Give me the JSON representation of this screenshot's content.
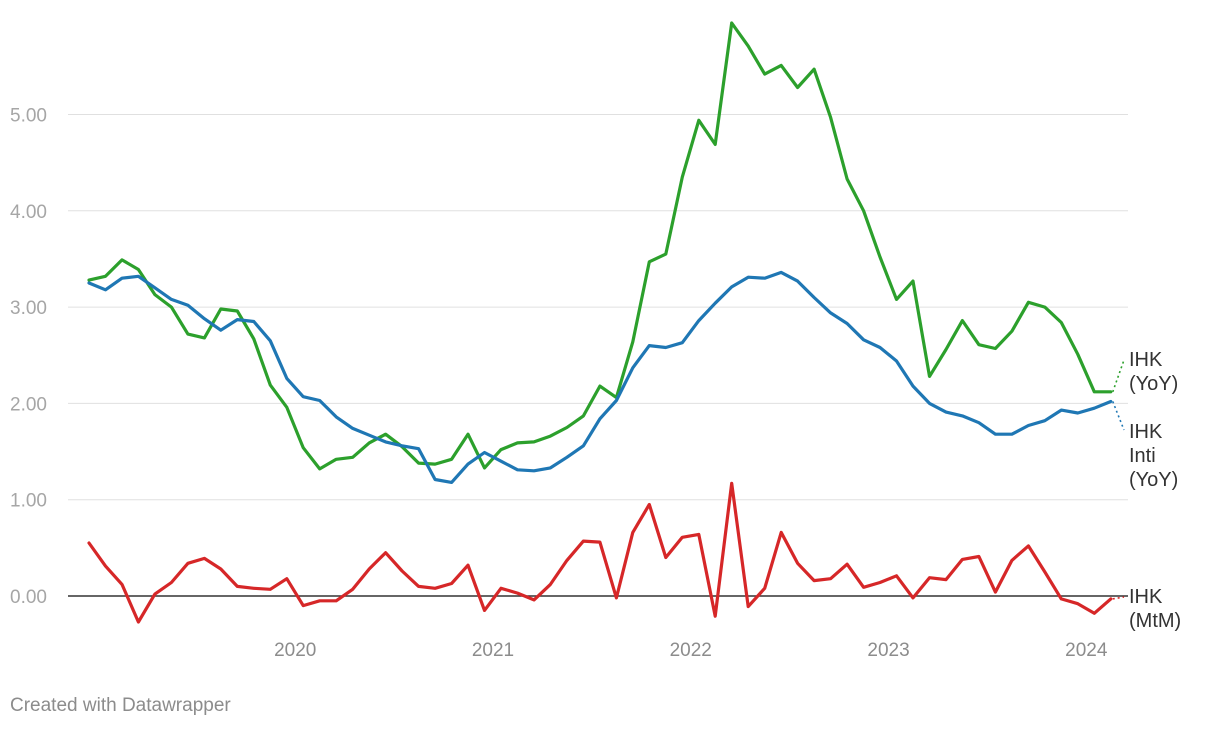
{
  "chart_data": {
    "type": "line",
    "x_start": "2019-06",
    "x_ticks": [
      "2020",
      "2021",
      "2022",
      "2023",
      "2024"
    ],
    "y_ticks": [
      "0.00",
      "1.00",
      "2.00",
      "3.00",
      "4.00",
      "5.00"
    ],
    "ylim": [
      -0.4,
      5.9
    ],
    "grid": true,
    "series": [
      {
        "name": "IHK (YoY)",
        "color": "#2ca02c",
        "label_lines": [
          "IHK",
          "(YoY)"
        ],
        "values": [
          3.28,
          3.32,
          3.49,
          3.39,
          3.13,
          3.0,
          2.72,
          2.68,
          2.98,
          2.96,
          2.67,
          2.19,
          1.96,
          1.54,
          1.32,
          1.42,
          1.44,
          1.59,
          1.68,
          1.55,
          1.38,
          1.37,
          1.42,
          1.68,
          1.33,
          1.52,
          1.59,
          1.6,
          1.66,
          1.75,
          1.87,
          2.18,
          2.06,
          2.64,
          3.47,
          3.55,
          4.35,
          4.94,
          4.69,
          5.95,
          5.71,
          5.42,
          5.51,
          5.28,
          5.47,
          4.97,
          4.33,
          4.0,
          3.52,
          3.08,
          3.27,
          2.28,
          2.56,
          2.86,
          2.61,
          2.57,
          2.75,
          3.05,
          3.0,
          2.84,
          2.51,
          2.12,
          2.12
        ]
      },
      {
        "name": "IHK Inti (YoY)",
        "color": "#1f77b4",
        "label_lines": [
          "IHK",
          "Inti",
          "(YoY)"
        ],
        "values": [
          3.25,
          3.18,
          3.3,
          3.32,
          3.2,
          3.08,
          3.02,
          2.88,
          2.76,
          2.87,
          2.85,
          2.65,
          2.26,
          2.07,
          2.03,
          1.86,
          1.74,
          1.67,
          1.6,
          1.56,
          1.53,
          1.21,
          1.18,
          1.37,
          1.49,
          1.4,
          1.31,
          1.3,
          1.33,
          1.44,
          1.56,
          1.84,
          2.03,
          2.37,
          2.6,
          2.58,
          2.63,
          2.86,
          3.04,
          3.21,
          3.31,
          3.3,
          3.36,
          3.27,
          3.1,
          2.94,
          2.83,
          2.66,
          2.58,
          2.44,
          2.18,
          2.0,
          1.91,
          1.87,
          1.8,
          1.68,
          1.68,
          1.77,
          1.82,
          1.93,
          1.9,
          1.95,
          2.02
        ]
      },
      {
        "name": "IHK (MtM)",
        "color": "#d62728",
        "label_lines": [
          "IHK",
          "(MtM)"
        ],
        "values": [
          0.55,
          0.31,
          0.12,
          -0.27,
          0.02,
          0.14,
          0.34,
          0.39,
          0.28,
          0.1,
          0.08,
          0.07,
          0.18,
          -0.1,
          -0.05,
          -0.05,
          0.07,
          0.28,
          0.45,
          0.26,
          0.1,
          0.08,
          0.13,
          0.32,
          -0.15,
          0.08,
          0.03,
          -0.04,
          0.12,
          0.37,
          0.57,
          0.56,
          -0.02,
          0.66,
          0.95,
          0.4,
          0.61,
          0.64,
          -0.21,
          1.17,
          -0.11,
          0.08,
          0.66,
          0.34,
          0.16,
          0.18,
          0.33,
          0.09,
          0.14,
          0.21,
          -0.02,
          0.19,
          0.17,
          0.38,
          0.41,
          0.04,
          0.37,
          0.52,
          0.25,
          -0.03,
          -0.08,
          -0.18,
          -0.03
        ]
      }
    ]
  },
  "footer": {
    "credit": "Created with Datawrapper"
  }
}
